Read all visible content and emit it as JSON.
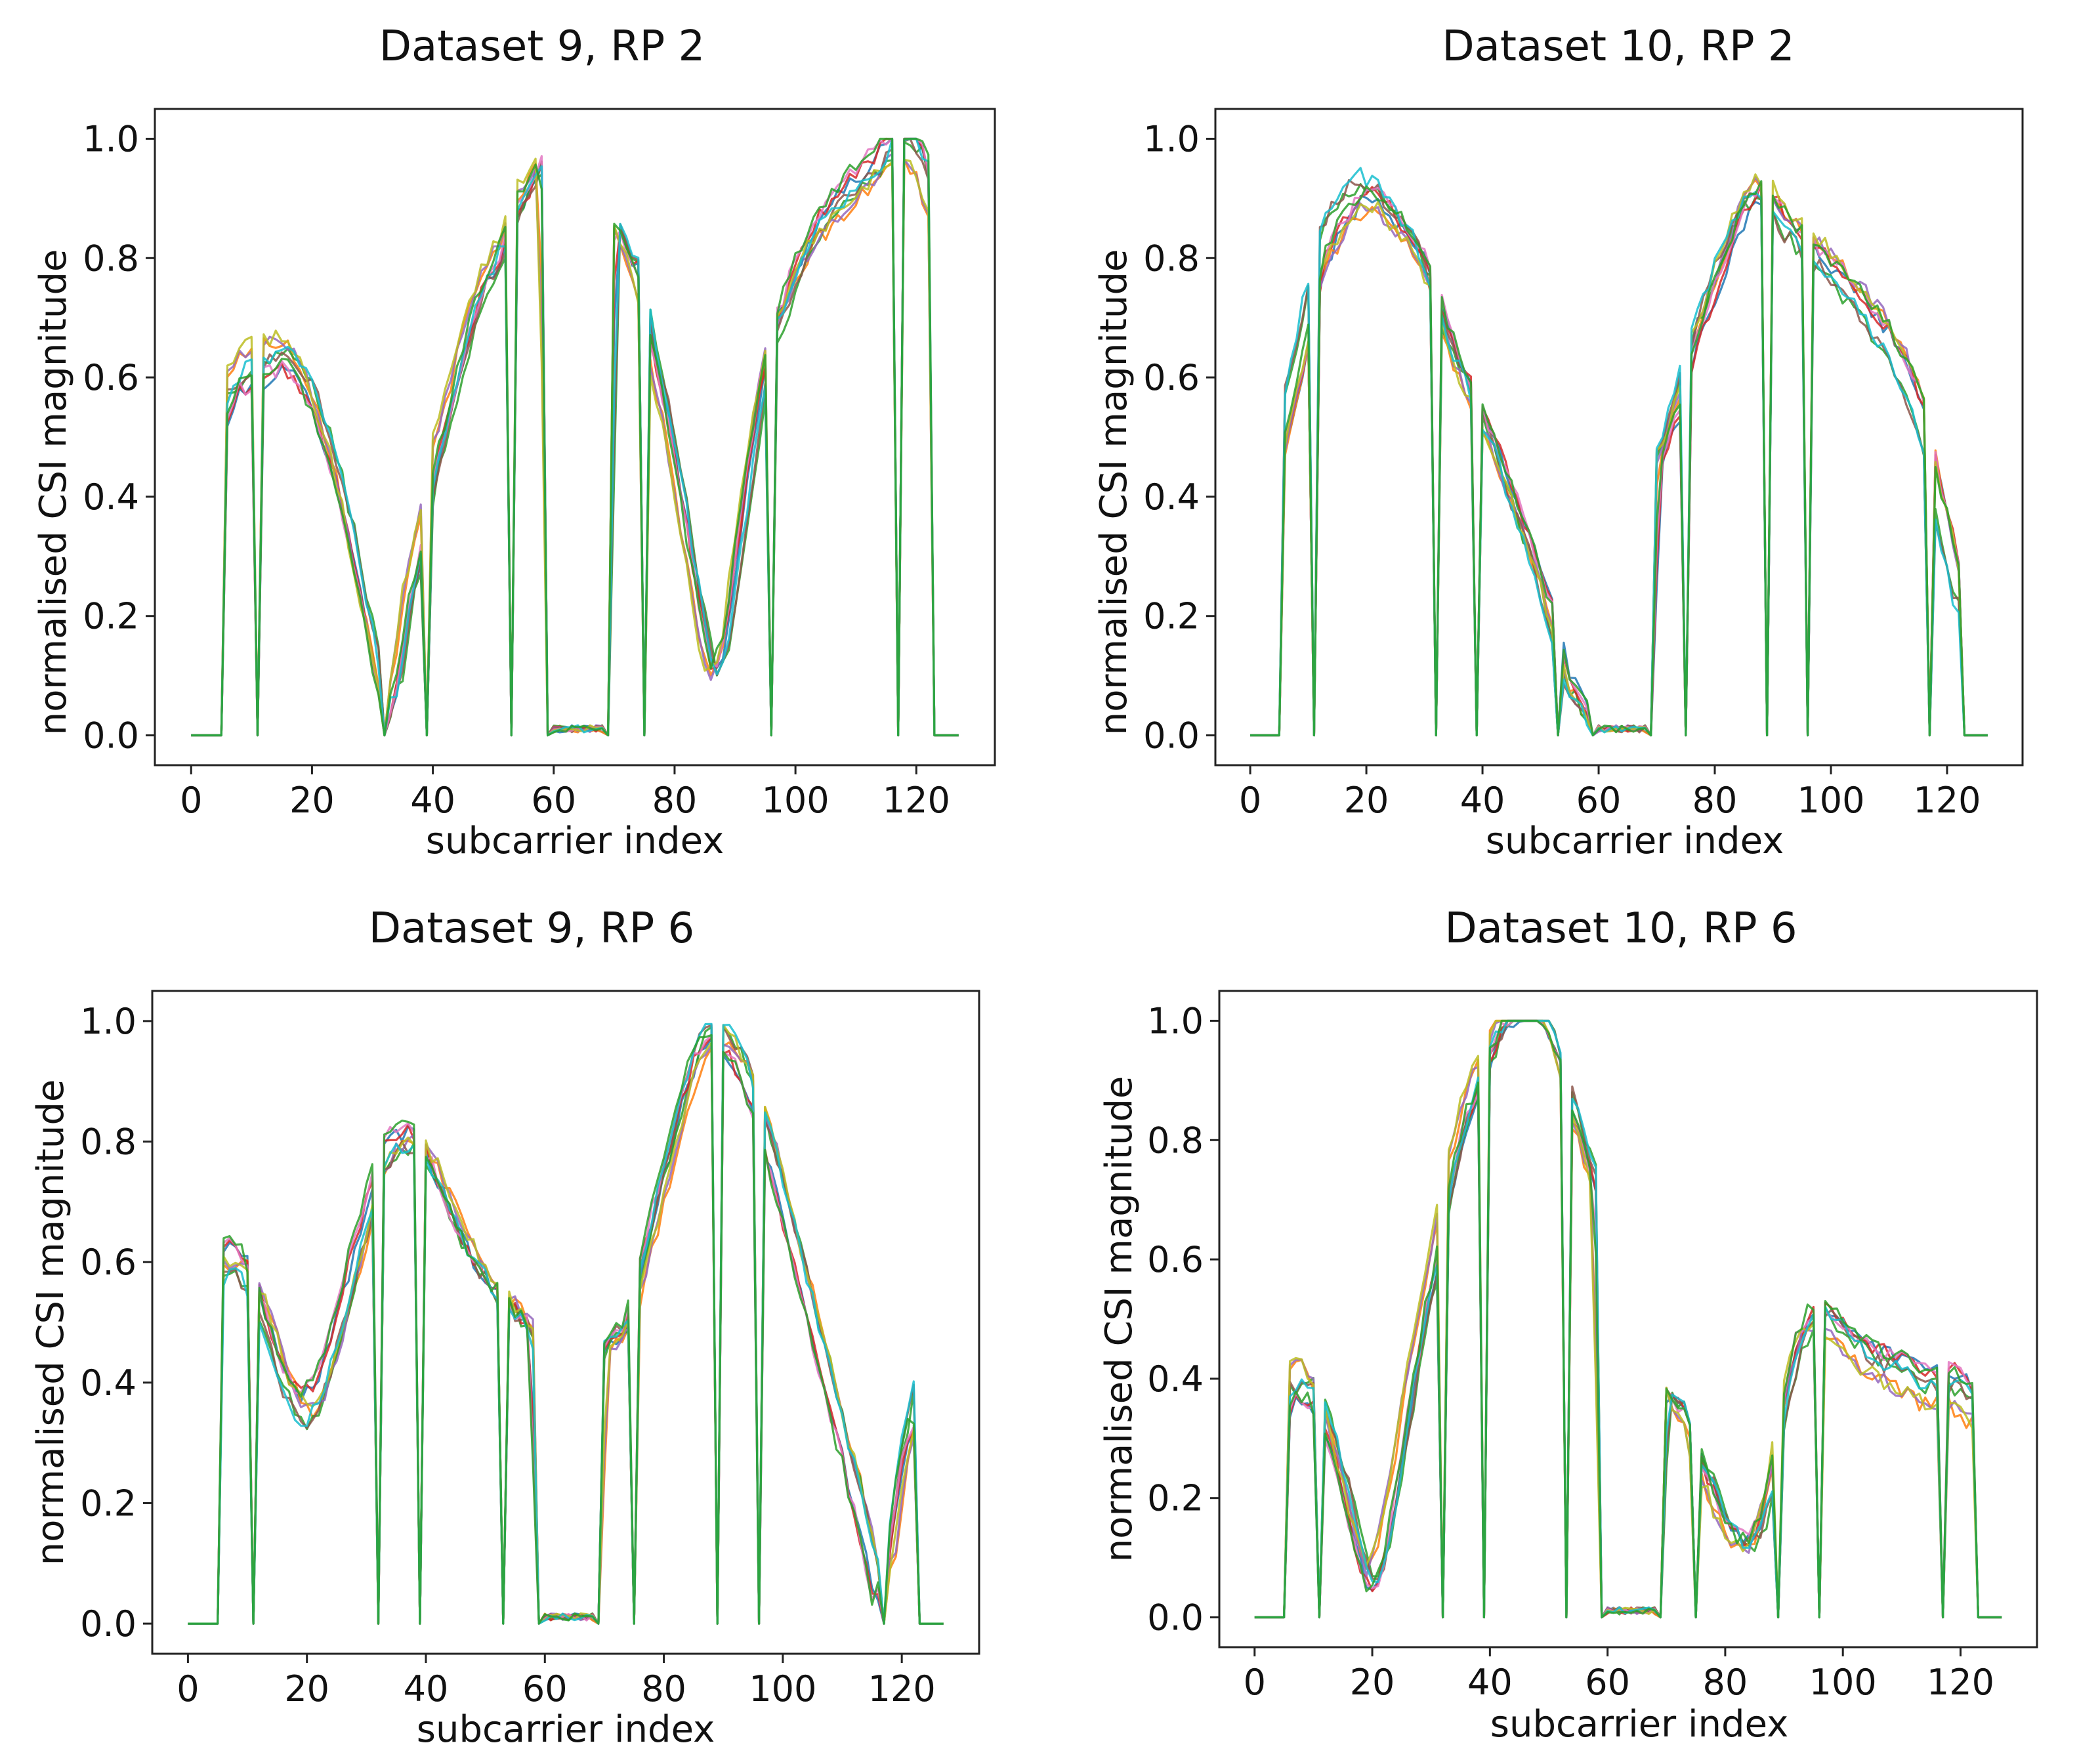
{
  "figure": {
    "panels": [
      {
        "title": "Dataset 9, RP 2",
        "xlabel": "subcarrier index",
        "ylabel": "normalised CSI magnitude",
        "xticks": [
          0,
          20,
          40,
          60,
          80,
          100,
          120
        ],
        "yticks": [
          0.0,
          0.2,
          0.4,
          0.6,
          0.8,
          1.0
        ],
        "xlim": [
          -6,
          133
        ],
        "ylim": [
          -0.05,
          1.05
        ]
      },
      {
        "title": "Dataset 10, RP 2",
        "xlabel": "subcarrier index",
        "ylabel": "normalised CSI magnitude",
        "xticks": [
          0,
          20,
          40,
          60,
          80,
          100,
          120
        ],
        "yticks": [
          0.0,
          0.2,
          0.4,
          0.6,
          0.8,
          1.0
        ],
        "xlim": [
          -6,
          133
        ],
        "ylim": [
          -0.05,
          1.05
        ]
      },
      {
        "title": "Dataset 9, RP 6",
        "xlabel": "subcarrier index",
        "ylabel": "normalised CSI magnitude",
        "xticks": [
          0,
          20,
          40,
          60,
          80,
          100,
          120
        ],
        "yticks": [
          0.0,
          0.2,
          0.4,
          0.6,
          0.8,
          1.0
        ],
        "xlim": [
          -6,
          133
        ],
        "ylim": [
          -0.05,
          1.05
        ]
      },
      {
        "title": "Dataset 10, RP 6",
        "xlabel": "subcarrier index",
        "ylabel": "normalised CSI magnitude",
        "xticks": [
          0,
          20,
          40,
          60,
          80,
          100,
          120
        ],
        "yticks": [
          0.0,
          0.2,
          0.4,
          0.6,
          0.8,
          1.0
        ],
        "xlim": [
          -6,
          133
        ],
        "ylim": [
          -0.05,
          1.05
        ]
      }
    ]
  },
  "chart_data": [
    {
      "type": "line",
      "title": "Dataset 9, RP 2",
      "xlabel": "subcarrier index",
      "ylabel": "normalised CSI magnitude",
      "xlim": [
        -6,
        133
      ],
      "ylim": [
        -0.05,
        1.05
      ],
      "series_count": 10,
      "colors": [
        "#1f77b4",
        "#ff7f0e",
        "#2ca02c",
        "#d62728",
        "#9467bd",
        "#8c564b",
        "#e377c2",
        "#bcbd22",
        "#17becf",
        "#2ca02c"
      ],
      "null_subcarriers": [
        0,
        1,
        2,
        3,
        4,
        5,
        11,
        32,
        39,
        53,
        59,
        60,
        61,
        62,
        63,
        64,
        65,
        66,
        67,
        68,
        69,
        75,
        96,
        117,
        123,
        124,
        125,
        126,
        127
      ],
      "profile_x": [
        6,
        8,
        10,
        12,
        14,
        16,
        18,
        20,
        22,
        24,
        26,
        28,
        30,
        32,
        34,
        36,
        38,
        40,
        42,
        44,
        46,
        48,
        50,
        52,
        54,
        56,
        58,
        60,
        68,
        70,
        72,
        74,
        76,
        78,
        80,
        82,
        84,
        86,
        88,
        90,
        92,
        94,
        96,
        98,
        100,
        102,
        104,
        106,
        108,
        110,
        112,
        114,
        116,
        118,
        120,
        122
      ],
      "profile_y": [
        0.56,
        0.6,
        0.61,
        0.62,
        0.63,
        0.63,
        0.6,
        0.56,
        0.5,
        0.43,
        0.34,
        0.24,
        0.14,
        0.04,
        0.1,
        0.24,
        0.32,
        0.44,
        0.52,
        0.6,
        0.68,
        0.74,
        0.78,
        0.82,
        0.88,
        0.91,
        0.95,
        0.01,
        0.01,
        0.84,
        0.8,
        0.76,
        0.64,
        0.55,
        0.45,
        0.32,
        0.2,
        0.1,
        0.13,
        0.28,
        0.42,
        0.56,
        0.66,
        0.7,
        0.76,
        0.8,
        0.84,
        0.86,
        0.88,
        0.9,
        0.92,
        0.94,
        0.97,
        0.98,
        0.96,
        0.9
      ]
    },
    {
      "type": "line",
      "title": "Dataset 10, RP 2",
      "xlabel": "subcarrier index",
      "ylabel": "normalised CSI magnitude",
      "xlim": [
        -6,
        133
      ],
      "ylim": [
        -0.05,
        1.05
      ],
      "series_count": 10,
      "colors": [
        "#1f77b4",
        "#ff7f0e",
        "#2ca02c",
        "#d62728",
        "#9467bd",
        "#8c564b",
        "#e377c2",
        "#bcbd22",
        "#17becf",
        "#2ca02c"
      ],
      "null_subcarriers": [
        0,
        1,
        2,
        3,
        4,
        5,
        11,
        32,
        39,
        53,
        59,
        60,
        61,
        62,
        63,
        64,
        65,
        66,
        67,
        68,
        69,
        75,
        89,
        96,
        117,
        123,
        124,
        125,
        126,
        127
      ],
      "profile_x": [
        6,
        8,
        10,
        12,
        14,
        16,
        18,
        20,
        22,
        24,
        26,
        28,
        30,
        32,
        34,
        36,
        38,
        40,
        42,
        44,
        46,
        48,
        50,
        52,
        54,
        56,
        58,
        60,
        68,
        70,
        72,
        74,
        76,
        78,
        80,
        82,
        84,
        86,
        88,
        90,
        92,
        94,
        96,
        98,
        100,
        102,
        104,
        106,
        108,
        110,
        112,
        114,
        116,
        118,
        120,
        122
      ],
      "profile_y": [
        0.55,
        0.66,
        0.75,
        0.86,
        0.91,
        0.94,
        0.97,
        0.98,
        0.97,
        0.94,
        0.92,
        0.89,
        0.85,
        0.79,
        0.72,
        0.66,
        0.62,
        0.57,
        0.52,
        0.46,
        0.4,
        0.34,
        0.28,
        0.2,
        0.12,
        0.07,
        0.04,
        0.01,
        0.01,
        0.5,
        0.55,
        0.61,
        0.7,
        0.76,
        0.82,
        0.88,
        0.93,
        0.97,
        0.98,
        0.96,
        0.92,
        0.9,
        0.88,
        0.86,
        0.84,
        0.82,
        0.79,
        0.77,
        0.74,
        0.71,
        0.67,
        0.62,
        0.56,
        0.45,
        0.36,
        0.26
      ]
    },
    {
      "type": "line",
      "title": "Dataset 9, RP 6",
      "xlabel": "subcarrier index",
      "ylabel": "normalised CSI magnitude",
      "xlim": [
        -6,
        133
      ],
      "ylim": [
        -0.05,
        1.05
      ],
      "series_count": 10,
      "colors": [
        "#1f77b4",
        "#ff7f0e",
        "#2ca02c",
        "#d62728",
        "#9467bd",
        "#8c564b",
        "#e377c2",
        "#bcbd22",
        "#17becf",
        "#2ca02c"
      ],
      "null_subcarriers": [
        0,
        1,
        2,
        3,
        4,
        5,
        11,
        32,
        39,
        53,
        59,
        60,
        61,
        62,
        63,
        64,
        65,
        66,
        67,
        68,
        69,
        75,
        89,
        96,
        117,
        123,
        124,
        125,
        126,
        127
      ],
      "profile_x": [
        6,
        8,
        10,
        12,
        14,
        16,
        18,
        20,
        22,
        24,
        26,
        28,
        30,
        32,
        34,
        36,
        38,
        40,
        42,
        44,
        46,
        48,
        50,
        52,
        54,
        56,
        58,
        60,
        68,
        70,
        72,
        74,
        76,
        78,
        80,
        82,
        84,
        86,
        88,
        90,
        92,
        94,
        96,
        98,
        100,
        102,
        104,
        106,
        108,
        110,
        112,
        114,
        116,
        118,
        120,
        122
      ],
      "profile_y": [
        0.62,
        0.63,
        0.6,
        0.56,
        0.5,
        0.43,
        0.39,
        0.37,
        0.39,
        0.45,
        0.52,
        0.6,
        0.68,
        0.75,
        0.8,
        0.82,
        0.82,
        0.8,
        0.76,
        0.71,
        0.66,
        0.62,
        0.59,
        0.56,
        0.54,
        0.52,
        0.5,
        0.01,
        0.01,
        0.45,
        0.48,
        0.5,
        0.58,
        0.66,
        0.74,
        0.82,
        0.9,
        0.96,
        0.99,
        0.98,
        0.96,
        0.92,
        0.86,
        0.8,
        0.72,
        0.64,
        0.56,
        0.48,
        0.4,
        0.32,
        0.24,
        0.15,
        0.06,
        0.1,
        0.25,
        0.35
      ]
    },
    {
      "type": "line",
      "title": "Dataset 10, RP 6",
      "xlabel": "subcarrier index",
      "ylabel": "normalised CSI magnitude",
      "xlim": [
        -6,
        133
      ],
      "ylim": [
        -0.05,
        1.05
      ],
      "series_count": 10,
      "colors": [
        "#1f77b4",
        "#ff7f0e",
        "#2ca02c",
        "#d62728",
        "#9467bd",
        "#8c564b",
        "#e377c2",
        "#bcbd22",
        "#17becf",
        "#2ca02c"
      ],
      "null_subcarriers": [
        0,
        1,
        2,
        3,
        4,
        5,
        11,
        32,
        39,
        53,
        59,
        60,
        61,
        62,
        63,
        64,
        65,
        66,
        67,
        68,
        69,
        75,
        89,
        96,
        117,
        123,
        124,
        125,
        126,
        127
      ],
      "profile_x": [
        6,
        8,
        10,
        12,
        14,
        16,
        18,
        20,
        22,
        24,
        26,
        28,
        30,
        32,
        34,
        36,
        38,
        40,
        42,
        44,
        46,
        48,
        50,
        52,
        54,
        56,
        58,
        60,
        68,
        70,
        72,
        74,
        76,
        78,
        80,
        82,
        84,
        86,
        88,
        90,
        92,
        94,
        96,
        98,
        100,
        102,
        104,
        106,
        108,
        110,
        112,
        114,
        116,
        118,
        120,
        122
      ],
      "profile_y": [
        0.38,
        0.4,
        0.38,
        0.34,
        0.28,
        0.2,
        0.12,
        0.06,
        0.12,
        0.22,
        0.34,
        0.45,
        0.55,
        0.64,
        0.74,
        0.82,
        0.87,
        0.92,
        0.96,
        0.99,
        1.0,
        0.99,
        0.96,
        0.9,
        0.82,
        0.76,
        0.7,
        0.01,
        0.01,
        0.37,
        0.34,
        0.3,
        0.24,
        0.2,
        0.15,
        0.12,
        0.11,
        0.14,
        0.22,
        0.33,
        0.42,
        0.46,
        0.48,
        0.47,
        0.45,
        0.43,
        0.41,
        0.4,
        0.39,
        0.38,
        0.37,
        0.36,
        0.36,
        0.36,
        0.35,
        0.33
      ]
    }
  ]
}
